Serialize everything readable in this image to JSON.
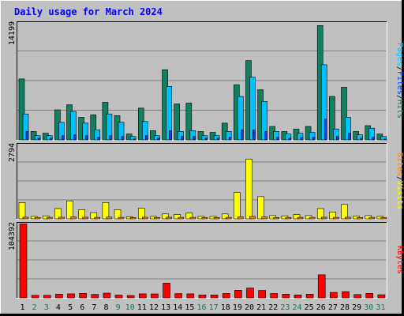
{
  "chart_data": {
    "type": "bar",
    "title": "Daily usage for March 2024",
    "categories": [
      "1",
      "2",
      "3",
      "4",
      "5",
      "6",
      "7",
      "8",
      "9",
      "10",
      "11",
      "12",
      "13",
      "14",
      "15",
      "16",
      "17",
      "18",
      "19",
      "20",
      "21",
      "22",
      "23",
      "24",
      "25",
      "26",
      "27",
      "28",
      "29",
      "30",
      "31"
    ],
    "weekend_days": [
      "2",
      "3",
      "9",
      "10",
      "16",
      "17",
      "23",
      "24",
      "30",
      "31"
    ],
    "panels": [
      {
        "id": "hits",
        "ymax": 14199,
        "ymax_label": "14199",
        "series": [
          {
            "name": "Hits",
            "color": "#108060",
            "values": [
              7300,
              1000,
              800,
              3600,
              4200,
              2700,
              3000,
              4500,
              2900,
              700,
              3800,
              1100,
              8400,
              4300,
              4400,
              1000,
              900,
              2000,
              6600,
              9500,
              6000,
              1600,
              1000,
              1300,
              1600,
              13700,
              5200,
              6300,
              1000,
              1700,
              700
            ]
          },
          {
            "name": "Files",
            "color": "#00c0ff",
            "values": [
              3100,
              500,
              500,
              2100,
              3400,
              2000,
              1200,
              3100,
              2100,
              400,
              2200,
              500,
              6400,
              1000,
              1100,
              500,
              500,
              1000,
              5200,
              7500,
              4600,
              1000,
              700,
              800,
              900,
              9000,
              1300,
              2700,
              600,
              1400,
              400
            ]
          },
          {
            "name": "Pages",
            "color": "#0040ff",
            "values": [
              1000,
              200,
              200,
              500,
              600,
              500,
              300,
              500,
              400,
              100,
              500,
              200,
              1100,
              400,
              400,
              200,
              200,
              300,
              1200,
              1200,
              1000,
              300,
              200,
              300,
              300,
              2500,
              400,
              800,
              200,
              300,
              100
            ]
          }
        ],
        "axis_labels": [
          {
            "text": "Pages",
            "color": "#00c0ff"
          },
          {
            "text": "/",
            "color": "#000000"
          },
          {
            "text": "Files",
            "color": "#0040ff"
          },
          {
            "text": "/",
            "color": "#000000"
          },
          {
            "text": "Hits",
            "color": "#108060"
          }
        ]
      },
      {
        "id": "visits",
        "ymax": 2794,
        "ymax_label": "2794",
        "series": [
          {
            "name": "Visits",
            "color": "#ffff00",
            "values": [
              600,
              90,
              110,
              380,
              660,
              340,
              230,
              600,
              340,
              80,
              390,
              90,
              180,
              160,
              210,
              90,
              90,
              180,
              970,
              2200,
              820,
              120,
              110,
              160,
              120,
              380,
              250,
              530,
              100,
              120,
              90
            ]
          },
          {
            "name": "Sites",
            "color": "#ff8000",
            "values": [
              60,
              50,
              55,
              60,
              70,
              60,
              55,
              65,
              55,
              45,
              60,
              50,
              60,
              55,
              55,
              50,
              50,
              55,
              75,
              90,
              70,
              50,
              50,
              55,
              55,
              60,
              55,
              60,
              50,
              55,
              50
            ]
          }
        ],
        "axis_labels": [
          {
            "text": "Sites",
            "color": "#ff8000"
          },
          {
            "text": "/",
            "color": "#000000"
          },
          {
            "text": "Visits",
            "color": "#ffff00"
          }
        ]
      },
      {
        "id": "kbytes",
        "ymax": 104392,
        "ymax_label": "104392",
        "series": [
          {
            "name": "KBytes",
            "color": "#ff0000",
            "values": [
              101700,
              3500,
              3500,
              5000,
              5500,
              6200,
              4700,
              6500,
              3800,
              3200,
              5500,
              5400,
              20200,
              5800,
              5500,
              4000,
              4000,
              6000,
              10500,
              13500,
              10300,
              6000,
              5000,
              4000,
              5000,
              31700,
              7500,
              8500,
              4600,
              6100,
              4300
            ]
          }
        ],
        "axis_labels": [
          {
            "text": "KBytes",
            "color": "#ff0000"
          }
        ]
      }
    ],
    "legend": "right side, vertical",
    "grid": true
  }
}
